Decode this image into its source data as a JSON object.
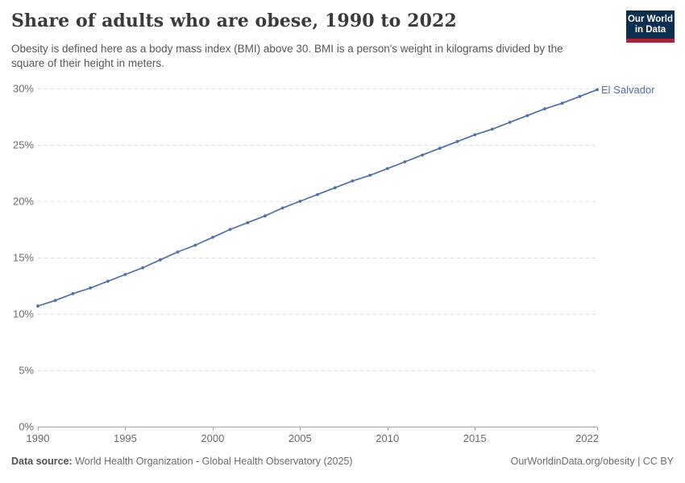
{
  "header": {
    "title": "Share of adults who are obese, 1990 to 2022",
    "subtitle": "Obesity is defined here as a body mass index (BMI) above 30. BMI is a person's weight in kilograms divided by the square of their height in meters.",
    "logo": {
      "line1": "Our World",
      "line2": "in Data",
      "bg_color": "#0d2e4e",
      "accent_color": "#a52639"
    }
  },
  "chart_data": {
    "type": "line",
    "title": "Share of adults who are obese, 1990 to 2022",
    "xlabel": "",
    "ylabel": "",
    "x": [
      1990,
      1991,
      1992,
      1993,
      1994,
      1995,
      1996,
      1997,
      1998,
      1999,
      2000,
      2001,
      2002,
      2003,
      2004,
      2005,
      2006,
      2007,
      2008,
      2009,
      2010,
      2011,
      2012,
      2013,
      2014,
      2015,
      2016,
      2017,
      2018,
      2019,
      2020,
      2021,
      2022
    ],
    "series": [
      {
        "name": "El Salvador",
        "color": "#4e70a8",
        "values": [
          10.7,
          11.2,
          11.8,
          12.3,
          12.9,
          13.5,
          14.1,
          14.8,
          15.5,
          16.1,
          16.8,
          17.5,
          18.1,
          18.7,
          19.4,
          20.0,
          20.6,
          21.2,
          21.8,
          22.3,
          22.9,
          23.5,
          24.1,
          24.7,
          25.3,
          25.9,
          26.4,
          27.0,
          27.6,
          28.2,
          28.7,
          29.3,
          29.9
        ]
      }
    ],
    "x_ticks": [
      1990,
      1995,
      2000,
      2005,
      2010,
      2015,
      2022
    ],
    "y_ticks": [
      0,
      5,
      10,
      15,
      20,
      25,
      30
    ],
    "y_tick_suffix": "%",
    "xlim": [
      1990,
      2022
    ],
    "ylim": [
      0,
      30
    ],
    "grid": "horizontal-dashed",
    "grid_color": "#dcdcdc",
    "axis_color": "#a3a3a3",
    "tick_label_color": "#6b6b6b",
    "legend_position": "end-of-line"
  },
  "footer": {
    "datasource_label": "Data source:",
    "datasource_text": " World Health Organization - Global Health Observatory (2025)",
    "credit": "OurWorldinData.org/obesity | CC BY"
  }
}
